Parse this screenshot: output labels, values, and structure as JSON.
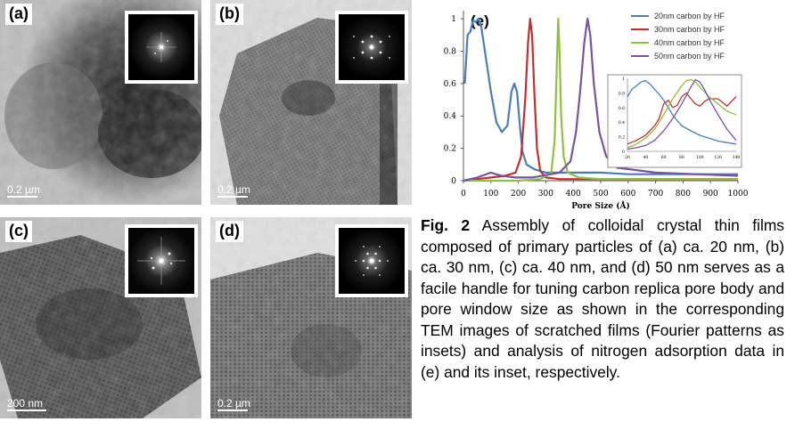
{
  "panels": [
    {
      "label": "(a)",
      "scale": "0.2 µm",
      "scale_bar_fraction": 0.17
    },
    {
      "label": "(b)",
      "scale": "0.2 µm",
      "scale_bar_fraction": 0.17
    },
    {
      "label": "(c)",
      "scale": "200 nm",
      "scale_bar_fraction": 0.22
    },
    {
      "label": "(d)",
      "scale": "0.2 µm",
      "scale_bar_fraction": 0.17
    }
  ],
  "chart_data": {
    "type": "line",
    "panel_label": "(e)",
    "xlabel": "Pore Size (Å)",
    "ylabel": "",
    "xlim": [
      0,
      1000
    ],
    "ylim": [
      0,
      1.05
    ],
    "xticks": [
      0,
      100,
      200,
      300,
      400,
      500,
      600,
      700,
      800,
      900,
      1000
    ],
    "yticks": [
      0,
      0.2,
      0.4,
      0.6,
      0.8,
      1
    ],
    "ytick_labels": [
      "0",
      "0.2",
      "0.4",
      "0.6",
      "0.8",
      "1"
    ],
    "legend_position": "top-right",
    "series": [
      {
        "name": "20nm carbon by HF",
        "color": "#4a7ebb",
        "x": [
          5,
          15,
          25,
          35,
          45,
          55,
          65,
          80,
          100,
          120,
          140,
          160,
          175,
          185,
          195,
          205,
          215,
          230,
          260,
          300,
          400,
          500,
          600,
          800,
          1000
        ],
        "y": [
          0.6,
          0.9,
          0.92,
          0.99,
          0.98,
          1.0,
          0.95,
          0.78,
          0.55,
          0.36,
          0.3,
          0.34,
          0.55,
          0.6,
          0.55,
          0.35,
          0.18,
          0.1,
          0.07,
          0.05,
          0.05,
          0.05,
          0.04,
          0.04,
          0.04
        ]
      },
      {
        "name": "30nm carbon by HF",
        "color": "#c0312d",
        "x": [
          0,
          50,
          100,
          150,
          190,
          210,
          225,
          235,
          243,
          250,
          258,
          268,
          280,
          300,
          350,
          400,
          500,
          600,
          1000
        ],
        "y": [
          0,
          0.01,
          0.02,
          0.03,
          0.05,
          0.15,
          0.5,
          0.85,
          1.0,
          0.9,
          0.55,
          0.2,
          0.06,
          0.02,
          0.01,
          0.01,
          0.01,
          0.01,
          0.01
        ]
      },
      {
        "name": "40nm carbon by HF",
        "color": "#8fc042",
        "x": [
          0,
          100,
          200,
          280,
          320,
          332,
          340,
          345,
          350,
          356,
          365,
          380,
          420,
          500,
          600,
          1000
        ],
        "y": [
          0,
          0,
          0,
          0.01,
          0.05,
          0.25,
          0.7,
          1.0,
          0.8,
          0.4,
          0.15,
          0.05,
          0.02,
          0.01,
          0.01,
          0.01
        ]
      },
      {
        "name": "50nm carbon by HF",
        "color": "#7a52a3",
        "x": [
          0,
          50,
          100,
          140,
          190,
          250,
          350,
          390,
          410,
          425,
          440,
          452,
          462,
          475,
          495,
          520,
          560,
          700,
          1000
        ],
        "y": [
          0,
          0.02,
          0.05,
          0.03,
          0.02,
          0.02,
          0.05,
          0.12,
          0.3,
          0.55,
          0.85,
          1.0,
          0.9,
          0.6,
          0.3,
          0.15,
          0.08,
          0.05,
          0.03
        ]
      }
    ],
    "inset": {
      "xlim": [
        20,
        140
      ],
      "ylim": [
        0,
        1
      ],
      "xticks": [
        20,
        40,
        60,
        80,
        100,
        120,
        140
      ],
      "yticks": [
        0,
        0.2,
        0.4,
        0.6,
        0.8,
        1
      ],
      "ytick_labels": [
        "0",
        "0.2",
        "0.4",
        "0.6",
        "0.8",
        "1"
      ],
      "series": [
        {
          "color": "#4a7ebb",
          "x": [
            20,
            25,
            30,
            35,
            40,
            45,
            50,
            55,
            60,
            65,
            70,
            75,
            80,
            90,
            100,
            110,
            120,
            130,
            140
          ],
          "y": [
            0.75,
            0.85,
            0.9,
            0.95,
            0.97,
            0.92,
            0.85,
            0.78,
            0.7,
            0.6,
            0.5,
            0.42,
            0.35,
            0.28,
            0.22,
            0.18,
            0.14,
            0.12,
            0.1
          ]
        },
        {
          "color": "#c0312d",
          "x": [
            20,
            30,
            40,
            50,
            55,
            60,
            65,
            70,
            75,
            80,
            85,
            90,
            95,
            100,
            105,
            110,
            120,
            130,
            140
          ],
          "y": [
            0.1,
            0.15,
            0.22,
            0.35,
            0.45,
            0.65,
            0.7,
            0.6,
            0.63,
            0.75,
            0.8,
            0.72,
            0.65,
            0.62,
            0.68,
            0.72,
            0.72,
            0.62,
            0.75
          ]
        },
        {
          "color": "#8fc042",
          "x": [
            20,
            30,
            40,
            50,
            60,
            70,
            80,
            85,
            90,
            95,
            100,
            110,
            120,
            130,
            140
          ],
          "y": [
            0.05,
            0.1,
            0.18,
            0.3,
            0.5,
            0.72,
            0.9,
            0.97,
            0.98,
            0.95,
            0.88,
            0.75,
            0.65,
            0.55,
            0.5
          ]
        },
        {
          "color": "#7a52a3",
          "x": [
            20,
            30,
            40,
            50,
            60,
            70,
            80,
            90,
            95,
            100,
            105,
            110,
            120,
            130,
            140
          ],
          "y": [
            0.03,
            0.05,
            0.08,
            0.15,
            0.28,
            0.45,
            0.65,
            0.88,
            0.98,
            0.95,
            0.85,
            0.72,
            0.5,
            0.3,
            0.15
          ]
        }
      ]
    }
  },
  "caption": {
    "label": "Fig. 2",
    "text": "Assembly of colloidal crystal thin films composed of primary particles of (a) ca. 20 nm, (b) ca. 30 nm, (c) ca. 40 nm, and (d) 50 nm serves as a facile handle for tuning carbon replica pore body and pore window size as shown in the corresponding TEM images of scratched films (Fourier patterns as insets) and analysis of nitrogen adsorption data in (e) and its inset, respectively."
  }
}
